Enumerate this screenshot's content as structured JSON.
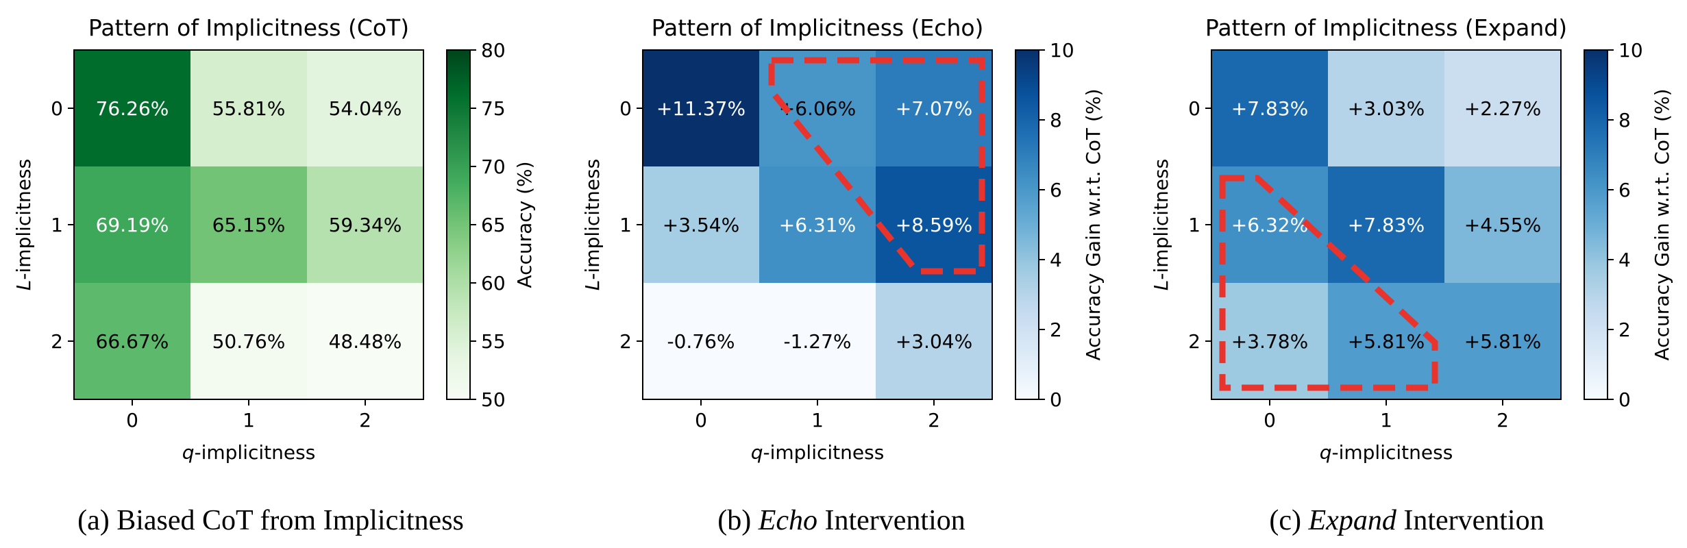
{
  "chart_data": [
    {
      "type": "heatmap",
      "title": "Pattern of Implicitness (CoT)",
      "xlabel_var": "q",
      "xlabel_rest": "-implicitness",
      "ylabel_var": "L",
      "ylabel_rest": "-implicitness",
      "x_ticks": [
        "0",
        "1",
        "2"
      ],
      "y_ticks": [
        "0",
        "1",
        "2"
      ],
      "values": [
        [
          76.26,
          55.81,
          54.04
        ],
        [
          69.19,
          65.15,
          59.34
        ],
        [
          66.67,
          50.76,
          48.48
        ]
      ],
      "cell_labels": [
        [
          "76.26%",
          "55.81%",
          "54.04%"
        ],
        [
          "69.19%",
          "65.15%",
          "59.34%"
        ],
        [
          "66.67%",
          "50.76%",
          "48.48%"
        ]
      ],
      "colormap": "Greens",
      "colorbar": {
        "label": "Accuracy (%)",
        "range": [
          50,
          80
        ],
        "ticks": [
          "50",
          "55",
          "60",
          "65",
          "70",
          "75",
          "80"
        ]
      },
      "caption": {
        "prefix": "(a) Biased CoT from Implicitness",
        "italic": "",
        "suffix": ""
      }
    },
    {
      "type": "heatmap",
      "title": "Pattern of Implicitness (Echo)",
      "xlabel_var": "q",
      "xlabel_rest": "-implicitness",
      "ylabel_var": "L",
      "ylabel_rest": "-implicitness",
      "x_ticks": [
        "0",
        "1",
        "2"
      ],
      "y_ticks": [
        "0",
        "1",
        "2"
      ],
      "values": [
        [
          11.37,
          6.06,
          7.07
        ],
        [
          3.54,
          6.31,
          8.59
        ],
        [
          -0.76,
          -1.27,
          3.04
        ]
      ],
      "cell_labels": [
        [
          "+11.37%",
          "+6.06%",
          "+7.07%"
        ],
        [
          "+3.54%",
          "+6.31%",
          "+8.59%"
        ],
        [
          "-0.76%",
          "-1.27%",
          "+3.04%"
        ]
      ],
      "colormap": "Blues",
      "colorbar": {
        "label": "Accuracy Gain w.r.t. CoT (%)",
        "range": [
          0,
          10
        ],
        "ticks": [
          "0",
          "2",
          "4",
          "6",
          "8",
          "10"
        ]
      },
      "highlight": "upper-right triangle (dashed red)",
      "caption": {
        "prefix": "(b) ",
        "italic": "Echo",
        "suffix": " Intervention"
      }
    },
    {
      "type": "heatmap",
      "title": "Pattern of Implicitness (Expand)",
      "xlabel_var": "q",
      "xlabel_rest": "-implicitness",
      "ylabel_var": "L",
      "ylabel_rest": "-implicitness",
      "x_ticks": [
        "0",
        "1",
        "2"
      ],
      "y_ticks": [
        "0",
        "1",
        "2"
      ],
      "values": [
        [
          7.83,
          3.03,
          2.27
        ],
        [
          6.32,
          7.83,
          4.55
        ],
        [
          3.78,
          5.81,
          5.81
        ]
      ],
      "cell_labels": [
        [
          "+7.83%",
          "+3.03%",
          "+2.27%"
        ],
        [
          "+6.32%",
          "+7.83%",
          "+4.55%"
        ],
        [
          "+3.78%",
          "+5.81%",
          "+5.81%"
        ]
      ],
      "colormap": "Blues",
      "colorbar": {
        "label": "Accuracy Gain w.r.t. CoT (%)",
        "range": [
          0,
          10
        ],
        "ticks": [
          "0",
          "2",
          "4",
          "6",
          "8",
          "10"
        ]
      },
      "highlight": "lower-left triangle (dashed red)",
      "caption": {
        "prefix": "(c) ",
        "italic": "Expand",
        "suffix": " Intervention"
      }
    }
  ],
  "colors": {
    "greens": [
      "#f7fcf5",
      "#e5f5e0",
      "#c7e9c0",
      "#a1d99b",
      "#74c476",
      "#41ab5d",
      "#238b45",
      "#006d2c",
      "#00441b"
    ],
    "blues": [
      "#f7fbff",
      "#deebf7",
      "#c6dbef",
      "#9ecae1",
      "#6baed6",
      "#4292c6",
      "#2171b5",
      "#08519c",
      "#08306b"
    ],
    "highlight": "#e8342c",
    "axis": "#000000"
  }
}
